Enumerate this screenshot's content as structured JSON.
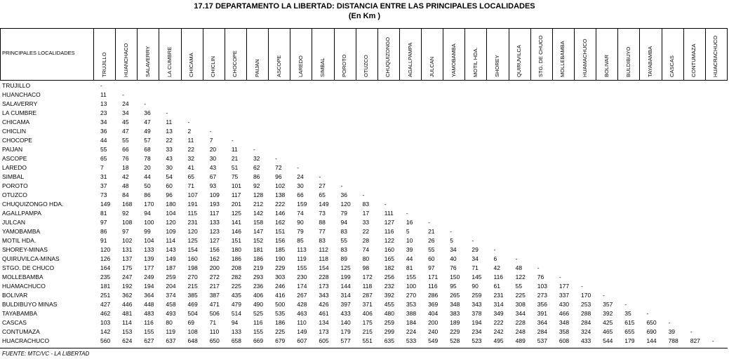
{
  "title": "17.17    DEPARTAMENTO LA LIBERTAD: DISTANCIA ENTRE LAS PRINCIPALES LOCALIDADES",
  "subtitle": "(En Km )",
  "table": {
    "corner": "PRINCIPALES LOCALIDADES",
    "columns": [
      "TRUJILLO",
      "HUANCHACO",
      "SALAVERRY",
      "LA CUMBRE",
      "CHICAMA",
      "CHICLIN",
      "CHOCOPE",
      "PAIJAN",
      "ASCOPE",
      "LAREDO",
      "SIMBAL",
      "POROTO",
      "OTUZCO",
      "CHUQUIZONGO",
      "AGALLPAMPA",
      "JULCAN",
      "YAMOBAMBA",
      "MOTIL HDA.",
      "SHOREY",
      "QUIRUVILCA",
      "STG. DE CHUCO",
      "MOLLEBAMBA",
      "HUAMACHUCO",
      "BOLIVAR",
      "BULDIBUYO",
      "TAYABAMBA",
      "CASCAS",
      "CONTUMAZA",
      "HUACRACHUCO"
    ],
    "rows": [
      {
        "label": "TRUJILLO",
        "cells": [
          "-"
        ]
      },
      {
        "label": "HUANCHACO",
        "cells": [
          11,
          "-"
        ]
      },
      {
        "label": "SALAVERRY",
        "cells": [
          13,
          24,
          "-"
        ]
      },
      {
        "label": "LA CUMBRE",
        "cells": [
          23,
          34,
          36,
          "-"
        ]
      },
      {
        "label": "CHICAMA",
        "cells": [
          34,
          45,
          47,
          11,
          "-"
        ]
      },
      {
        "label": "CHICLIN",
        "cells": [
          36,
          47,
          49,
          13,
          2,
          "-"
        ]
      },
      {
        "label": "CHOCOPE",
        "cells": [
          44,
          55,
          57,
          22,
          11,
          7,
          "-"
        ]
      },
      {
        "label": "PAIJAN",
        "cells": [
          55,
          66,
          68,
          33,
          22,
          20,
          11,
          "-"
        ]
      },
      {
        "label": "ASCOPE",
        "cells": [
          65,
          76,
          78,
          43,
          32,
          30,
          21,
          32,
          "-"
        ]
      },
      {
        "label": "LAREDO",
        "cells": [
          7,
          18,
          20,
          30,
          41,
          43,
          51,
          62,
          72,
          "-"
        ]
      },
      {
        "label": "SIMBAL",
        "cells": [
          31,
          42,
          44,
          54,
          65,
          67,
          75,
          86,
          96,
          24,
          "-"
        ]
      },
      {
        "label": "POROTO",
        "cells": [
          37,
          48,
          50,
          60,
          71,
          93,
          101,
          92,
          102,
          30,
          27,
          "-"
        ]
      },
      {
        "label": "OTUZCO",
        "cells": [
          73,
          84,
          86,
          96,
          107,
          109,
          117,
          128,
          138,
          66,
          65,
          36,
          "-"
        ]
      },
      {
        "label": "CHUQUIZONGO HDA.",
        "cells": [
          149,
          168,
          170,
          180,
          191,
          193,
          201,
          212,
          222,
          159,
          149,
          120,
          83,
          "-"
        ]
      },
      {
        "label": "AGALLPAMPA",
        "cells": [
          81,
          92,
          94,
          104,
          115,
          117,
          125,
          142,
          146,
          74,
          73,
          79,
          17,
          111,
          "-"
        ]
      },
      {
        "label": "JULCAN",
        "cells": [
          97,
          108,
          100,
          120,
          231,
          133,
          141,
          158,
          162,
          90,
          88,
          94,
          33,
          127,
          16,
          "-"
        ]
      },
      {
        "label": "YAMOBAMBA",
        "cells": [
          86,
          97,
          99,
          109,
          120,
          123,
          146,
          147,
          151,
          79,
          77,
          83,
          22,
          116,
          5,
          21,
          "-"
        ]
      },
      {
        "label": "MOTIL HDA.",
        "cells": [
          91,
          102,
          104,
          114,
          125,
          127,
          151,
          152,
          156,
          85,
          83,
          55,
          28,
          122,
          10,
          26,
          5,
          "-"
        ]
      },
      {
        "label": "SHOREY-MINAS",
        "cells": [
          120,
          131,
          133,
          143,
          154,
          156,
          180,
          181,
          185,
          113,
          112,
          83,
          74,
          160,
          39,
          55,
          34,
          29,
          "-"
        ]
      },
      {
        "label": "QUIRUVILCA-MINAS",
        "cells": [
          126,
          137,
          139,
          149,
          160,
          162,
          186,
          186,
          190,
          119,
          118,
          89,
          80,
          165,
          44,
          60,
          40,
          34,
          6,
          "-"
        ]
      },
      {
        "label": "STGO. DE CHUCO",
        "cells": [
          164,
          175,
          177,
          187,
          198,
          200,
          208,
          219,
          229,
          155,
          154,
          125,
          98,
          182,
          81,
          97,
          76,
          71,
          42,
          48,
          "-"
        ]
      },
      {
        "label": "MOLLEBAMBA",
        "cells": [
          235,
          247,
          249,
          259,
          270,
          272,
          282,
          293,
          303,
          230,
          228,
          199,
          172,
          256,
          155,
          171,
          150,
          145,
          116,
          122,
          76,
          "-"
        ]
      },
      {
        "label": "HUAMACHUCO",
        "cells": [
          181,
          192,
          194,
          204,
          215,
          217,
          225,
          236,
          246,
          174,
          173,
          144,
          118,
          232,
          100,
          116,
          95,
          90,
          61,
          55,
          103,
          177,
          "-"
        ]
      },
      {
        "label": "BOLIVAR",
        "cells": [
          251,
          362,
          364,
          374,
          385,
          387,
          435,
          406,
          416,
          267,
          343,
          314,
          287,
          392,
          270,
          286,
          265,
          259,
          231,
          225,
          273,
          337,
          170,
          "-"
        ]
      },
      {
        "label": "BULDIBUYO MINAS",
        "cells": [
          427,
          446,
          448,
          458,
          469,
          471,
          479,
          490,
          500,
          428,
          426,
          397,
          371,
          455,
          353,
          369,
          348,
          343,
          314,
          308,
          356,
          430,
          253,
          357,
          "-"
        ]
      },
      {
        "label": "TAYABAMBA",
        "cells": [
          462,
          481,
          483,
          493,
          504,
          506,
          514,
          525,
          535,
          463,
          461,
          433,
          406,
          480,
          388,
          404,
          383,
          378,
          349,
          344,
          391,
          466,
          288,
          392,
          35,
          "-"
        ]
      },
      {
        "label": "CASCAS",
        "cells": [
          103,
          114,
          116,
          80,
          69,
          71,
          94,
          116,
          186,
          110,
          134,
          140,
          175,
          259,
          184,
          200,
          189,
          194,
          222,
          228,
          364,
          348,
          284,
          425,
          615,
          650,
          "-"
        ]
      },
      {
        "label": "CONTUMAZA",
        "cells": [
          142,
          153,
          155,
          119,
          108,
          110,
          133,
          155,
          225,
          149,
          173,
          179,
          215,
          299,
          224,
          240,
          229,
          234,
          242,
          248,
          284,
          358,
          324,
          465,
          655,
          690,
          39,
          "-"
        ]
      },
      {
        "label": "HUACRACHUCO",
        "cells": [
          560,
          624,
          627,
          637,
          648,
          650,
          658,
          669,
          679,
          607,
          605,
          577,
          551,
          635,
          533,
          549,
          528,
          523,
          495,
          489,
          537,
          608,
          433,
          544,
          179,
          144,
          788,
          827,
          "-"
        ]
      }
    ]
  },
  "source": "FUENTE: MTC/VC  -  LA LIBERTAD"
}
